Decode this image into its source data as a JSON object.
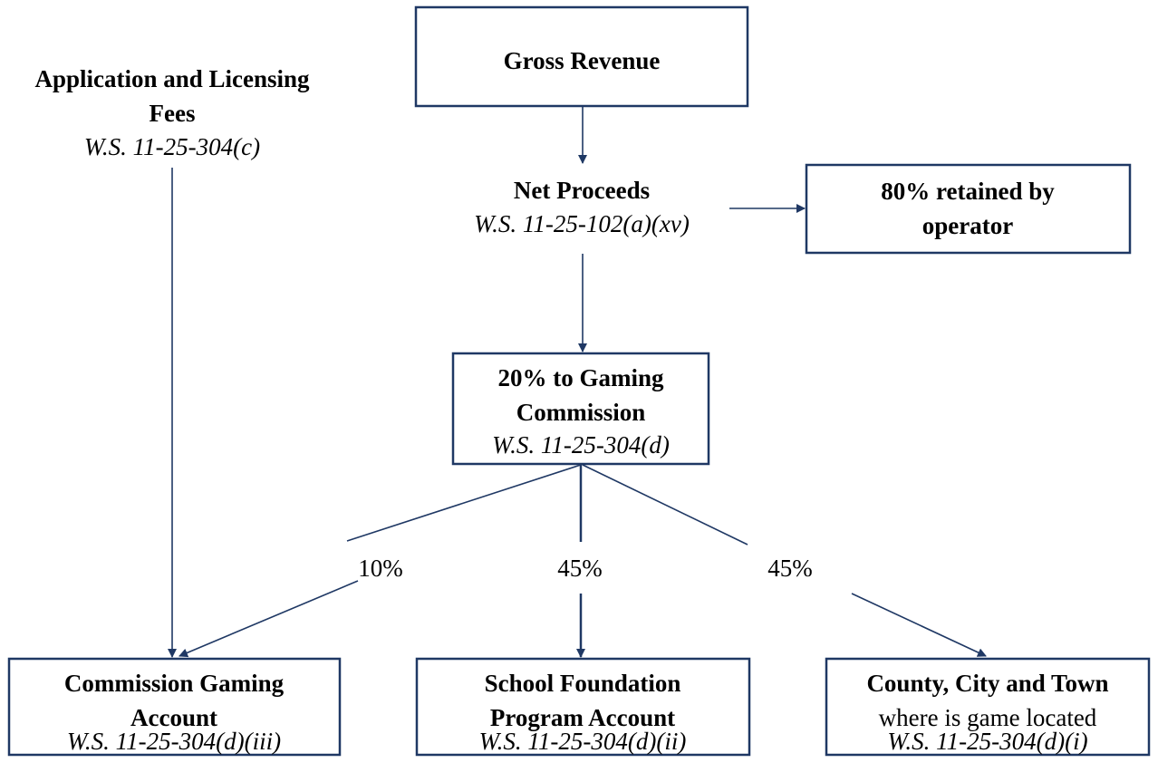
{
  "nodes": [
    {
      "title": [
        "Gross Revenue"
      ]
    },
    {
      "title": [
        "Application and Licensing",
        "Fees"
      ],
      "citation": "W.S. 11-25-304(c)"
    },
    {
      "title": [
        "Net Proceeds"
      ],
      "citation": "W.S. 11-25-102(a)(xv)"
    },
    {
      "title": [
        "80% retained by",
        "operator"
      ]
    },
    {
      "title": [
        "20% to Gaming",
        "Commission"
      ],
      "citation": "W.S. 11-25-304(d)"
    },
    {
      "title": [
        "Commission Gaming",
        "Account"
      ],
      "citation": "W.S. 11-25-304(d)(iii)"
    },
    {
      "title": [
        "School Foundation",
        "Program Account"
      ],
      "citation": "W.S. 11-25-304(d)(ii)"
    },
    {
      "title": [
        "County, City and Town"
      ],
      "text": "where is game located",
      "citation": "W.S. 11-25-304(d)(i)"
    }
  ],
  "edges": [
    {
      "label": "10%"
    },
    {
      "label": "45%"
    },
    {
      "label": "45%"
    }
  ]
}
